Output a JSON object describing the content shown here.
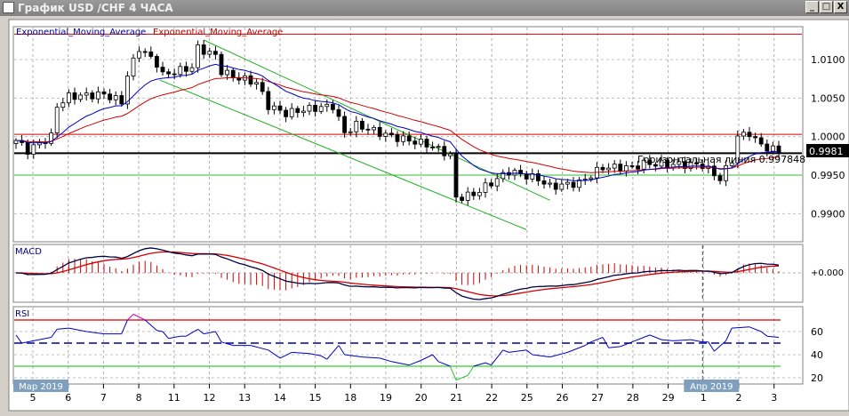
{
  "window": {
    "title": "График USD /CHF  4 ЧАСА",
    "minimize_label": "_",
    "maximize_label": "□",
    "close_label": "X"
  },
  "main_chart": {
    "legend_blue": "Exponential_Moving_Average",
    "legend_red": "Exponential_Moving_Average",
    "price_ticks": [
      {
        "label": "1.0100",
        "value": 1.01
      },
      {
        "label": "1.0050",
        "value": 1.005
      },
      {
        "label": "1.0000",
        "value": 1.0
      },
      {
        "label": "0.9950",
        "value": 0.995
      },
      {
        "label": "0.9900",
        "value": 0.99
      }
    ],
    "current_price_label": "0.9981",
    "current_price": 0.9981,
    "horizontal_line_label": "Горизонтальная линия 0.997848",
    "horizontal_line_value": 0.997848,
    "red_levels": [
      1.0133,
      1.0003
    ],
    "green_level": 0.995,
    "channel": [
      {
        "from": [
          32,
          1.01254
        ],
        "to": [
          91,
          0.99173
        ]
      },
      {
        "from": [
          24.5,
          1.00734
        ],
        "to": [
          87,
          0.98792
        ]
      }
    ]
  },
  "chart_data": {
    "type": "candlestick",
    "symbol": "USD/CHF",
    "timeframe": "4H",
    "candle_count": 131,
    "price_path": [
      [
        0,
        0.9995
      ],
      [
        2,
        0.9982
      ],
      [
        6,
        1.0
      ],
      [
        7,
        1.004
      ],
      [
        9,
        1.0052
      ],
      [
        15,
        1.0055
      ],
      [
        18,
        1.0045
      ],
      [
        19,
        1.008
      ],
      [
        21,
        1.0115
      ],
      [
        24,
        1.0095
      ],
      [
        25,
        1.008
      ],
      [
        30,
        1.009
      ],
      [
        31,
        1.0115
      ],
      [
        34,
        1.0105
      ],
      [
        35,
        1.0085
      ],
      [
        37,
        1.0078
      ],
      [
        41,
        1.007
      ],
      [
        43,
        1.004
      ],
      [
        46,
        1.003
      ],
      [
        49,
        1.0035
      ],
      [
        54,
        1.004
      ],
      [
        56,
        1.0005
      ],
      [
        58,
        1.0015
      ],
      [
        64,
        1.0
      ],
      [
        70,
        0.999
      ],
      [
        73,
        0.998
      ],
      [
        74,
        0.9975
      ],
      [
        75,
        0.992
      ],
      [
        78,
        0.9925
      ],
      [
        82,
        0.9945
      ],
      [
        84,
        0.9955
      ],
      [
        89,
        0.9945
      ],
      [
        91,
        0.9935
      ],
      [
        96,
        0.994
      ],
      [
        100,
        0.996
      ],
      [
        105,
        0.996
      ],
      [
        107,
        0.9965
      ],
      [
        117,
        0.9963
      ],
      [
        120,
        0.9945
      ],
      [
        122,
        0.997
      ],
      [
        123,
        1.0
      ],
      [
        125,
        1.0005
      ],
      [
        126,
        0.9995
      ],
      [
        128,
        0.9985
      ],
      [
        130,
        0.9981
      ]
    ],
    "rsi_path": [
      [
        0,
        57
      ],
      [
        1,
        50
      ],
      [
        3,
        52
      ],
      [
        6,
        55
      ],
      [
        7,
        62
      ],
      [
        9,
        63
      ],
      [
        12,
        60
      ],
      [
        15,
        58
      ],
      [
        18,
        58
      ],
      [
        19,
        70
      ],
      [
        20,
        75
      ],
      [
        22,
        70
      ],
      [
        24,
        61
      ],
      [
        25,
        60
      ],
      [
        26,
        54
      ],
      [
        28,
        56
      ],
      [
        29,
        56
      ],
      [
        31,
        62
      ],
      [
        32,
        58
      ],
      [
        34,
        60
      ],
      [
        35,
        51
      ],
      [
        37,
        48
      ],
      [
        40,
        48
      ],
      [
        43,
        44
      ],
      [
        45,
        37
      ],
      [
        47,
        42
      ],
      [
        50,
        41
      ],
      [
        52,
        39
      ],
      [
        53,
        36
      ],
      [
        55,
        48
      ],
      [
        56,
        40
      ],
      [
        59,
        38
      ],
      [
        62,
        37
      ],
      [
        64,
        34
      ],
      [
        67,
        31
      ],
      [
        69,
        35
      ],
      [
        71,
        40
      ],
      [
        72,
        34
      ],
      [
        74,
        30
      ],
      [
        75,
        18
      ],
      [
        77,
        22
      ],
      [
        78,
        30
      ],
      [
        80,
        33
      ],
      [
        81,
        31
      ],
      [
        83,
        44
      ],
      [
        84,
        42
      ],
      [
        87,
        44
      ],
      [
        88,
        40
      ],
      [
        91,
        38
      ],
      [
        94,
        42
      ],
      [
        97,
        48
      ],
      [
        98,
        51
      ],
      [
        100,
        55
      ],
      [
        101,
        46
      ],
      [
        103,
        47
      ],
      [
        105,
        51
      ],
      [
        108,
        57
      ],
      [
        110,
        53
      ],
      [
        112,
        52
      ],
      [
        115,
        53
      ],
      [
        117,
        51
      ],
      [
        118,
        51
      ],
      [
        119,
        43
      ],
      [
        121,
        52
      ],
      [
        122,
        63
      ],
      [
        125,
        64
      ],
      [
        127,
        60
      ],
      [
        128,
        56
      ],
      [
        130,
        55
      ]
    ],
    "ema_periods": {
      "blue": 14,
      "red": 28
    },
    "macd": {
      "label": "MACD",
      "zero_label": "+0.000"
    },
    "rsi": {
      "label": "RSI",
      "ticks": [
        {
          "label": "60",
          "value": 60
        },
        {
          "label": "40",
          "value": 40
        },
        {
          "label": "20",
          "value": 20
        }
      ],
      "overbought": 70,
      "mid": 50,
      "oversold": 30
    },
    "x_ticks": [
      "5",
      "6",
      "7",
      "8",
      "11",
      "12",
      "13",
      "14",
      "15",
      "18",
      "19",
      "20",
      "21",
      "22",
      "25",
      "26",
      "27",
      "28",
      "29",
      "1",
      "2",
      "3"
    ],
    "month_labels": [
      {
        "label": "Мар 2019",
        "tick": 0
      },
      {
        "label": "Апр 2019",
        "tick": 19
      }
    ]
  }
}
